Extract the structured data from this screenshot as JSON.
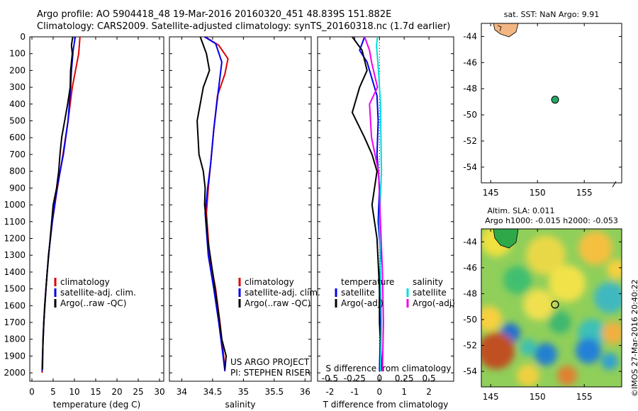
{
  "header": {
    "line1": "Argo profile: AO 5904418_48 19-Mar-2016 20160320_451 48.839S 151.882E",
    "line2": "Climatology: CARS2009. Satellite-adjusted climatology: synTS_20160318.nc (1.7d earlier)"
  },
  "stamp": "©IMOS 27-Mar-2016 20:40:22",
  "colors": {
    "clim": "#dd0000",
    "sat": "#0000ee",
    "argo": "#000000",
    "sat_s": "#00dddd",
    "argo_s": "#ee00ee"
  },
  "chart_data": [
    {
      "type": "line",
      "xlabel": "temperature (deg C)",
      "xlim": [
        -0.5,
        31
      ],
      "xticks": [
        0,
        5,
        10,
        15,
        20,
        25,
        30
      ],
      "ylim": [
        2050,
        0
      ],
      "yticks": [
        0,
        100,
        200,
        300,
        400,
        500,
        600,
        700,
        800,
        900,
        1000,
        1100,
        1200,
        1300,
        1400,
        1500,
        1600,
        1700,
        1800,
        1900,
        2000
      ],
      "legend": [
        "climatology",
        "satellite-adj. clim.",
        "Argo(..raw -QC)"
      ],
      "series": [
        {
          "name": "climatology",
          "color": "clim",
          "points": [
            [
              11.3,
              0
            ],
            [
              11,
              100
            ],
            [
              9.5,
              300
            ],
            [
              8.5,
              500
            ],
            [
              7.3,
              700
            ],
            [
              6,
              900
            ],
            [
              4.8,
              1100
            ],
            [
              3.9,
              1300
            ],
            [
              3.3,
              1500
            ],
            [
              2.8,
              1700
            ],
            [
              2.5,
              1900
            ],
            [
              2.4,
              2000
            ]
          ]
        },
        {
          "name": "satellite-adj. clim.",
          "color": "sat",
          "points": [
            [
              10.2,
              0
            ],
            [
              9.7,
              80
            ],
            [
              9.3,
              200
            ],
            [
              9.1,
              300
            ],
            [
              8.5,
              500
            ],
            [
              7.4,
              700
            ],
            [
              5.9,
              900
            ],
            [
              4.8,
              1100
            ],
            [
              3.9,
              1300
            ],
            [
              3.3,
              1500
            ],
            [
              2.8,
              1700
            ],
            [
              2.5,
              1900
            ],
            [
              2.4,
              1990
            ]
          ]
        },
        {
          "name": "Argo(..raw -QC)",
          "color": "argo",
          "points": [
            [
              9.6,
              0
            ],
            [
              9.3,
              50
            ],
            [
              9.5,
              100
            ],
            [
              9.1,
              200
            ],
            [
              9,
              300
            ],
            [
              8.4,
              400
            ],
            [
              7.7,
              500
            ],
            [
              7,
              600
            ],
            [
              6.6,
              700
            ],
            [
              6.3,
              800
            ],
            [
              5.8,
              900
            ],
            [
              5,
              1000
            ],
            [
              4.3,
              1200
            ],
            [
              3.6,
              1400
            ],
            [
              3,
              1600
            ],
            [
              2.6,
              1800
            ],
            [
              2.5,
              1980
            ]
          ]
        }
      ]
    },
    {
      "type": "line",
      "xlabel": "salinity",
      "xlim": [
        33.8,
        36.1
      ],
      "xticks": [
        34,
        34.5,
        35,
        35.5,
        36
      ],
      "ylim": [
        2050,
        0
      ],
      "legend": [
        "climatology",
        "satellite-adj. clim.",
        "Argo(..raw -QC)"
      ],
      "annotations": [
        "US ARGO PROJECT",
        "PI: STEPHEN RISER"
      ],
      "series": [
        {
          "name": "climatology",
          "color": "clim",
          "points": [
            [
              34.38,
              0
            ],
            [
              34.6,
              50
            ],
            [
              34.75,
              130
            ],
            [
              34.7,
              220
            ],
            [
              34.58,
              350
            ],
            [
              34.52,
              550
            ],
            [
              34.47,
              750
            ],
            [
              34.43,
              900
            ],
            [
              34.4,
              1050
            ],
            [
              34.45,
              1300
            ],
            [
              34.55,
              1500
            ],
            [
              34.62,
              1700
            ],
            [
              34.68,
              1900
            ],
            [
              34.7,
              1990
            ]
          ]
        },
        {
          "name": "satellite-adj. clim.",
          "color": "sat",
          "points": [
            [
              34.37,
              0
            ],
            [
              34.55,
              40
            ],
            [
              34.65,
              150
            ],
            [
              34.6,
              300
            ],
            [
              34.52,
              550
            ],
            [
              34.47,
              750
            ],
            [
              34.42,
              900
            ],
            [
              34.38,
              1050
            ],
            [
              34.43,
              1300
            ],
            [
              34.52,
              1500
            ],
            [
              34.6,
              1700
            ],
            [
              34.67,
              1900
            ],
            [
              34.7,
              1990
            ]
          ]
        },
        {
          "name": "Argo(..raw -QC)",
          "color": "argo",
          "points": [
            [
              34.3,
              0
            ],
            [
              34.4,
              100
            ],
            [
              34.45,
              200
            ],
            [
              34.35,
              300
            ],
            [
              34.25,
              500
            ],
            [
              34.28,
              700
            ],
            [
              34.35,
              800
            ],
            [
              34.38,
              900
            ],
            [
              34.37,
              1000
            ],
            [
              34.4,
              1100
            ],
            [
              34.42,
              1200
            ],
            [
              34.5,
              1400
            ],
            [
              34.58,
              1600
            ],
            [
              34.65,
              1800
            ],
            [
              34.72,
              1900
            ],
            [
              34.7,
              1980
            ]
          ]
        }
      ]
    },
    {
      "type": "line",
      "xlabel": "T difference from climatology",
      "x2label": "S difference from climatology",
      "xlim": [
        -2.5,
        3
      ],
      "xticks": [
        -2,
        -1,
        0,
        1,
        2
      ],
      "x2lim": [
        -0.625,
        0.75
      ],
      "x2ticks": [
        -0.5,
        -0.25,
        0,
        0.25,
        0.5
      ],
      "x2ticklabels": [
        "-0.5",
        "-0.25",
        "0",
        "0.25",
        "0.5"
      ],
      "ylim": [
        2050,
        0
      ],
      "legend_titles": [
        "temperature",
        "salinity"
      ],
      "legend_left": [
        "satellite",
        "Argo(-adj)"
      ],
      "legend_right": [
        "satellite",
        "Argo(-adj)"
      ],
      "series": [
        {
          "name": "satellite",
          "color": "sat",
          "axis": "T",
          "points": [
            [
              -0.6,
              0
            ],
            [
              -0.8,
              80
            ],
            [
              -0.5,
              150
            ],
            [
              -0.3,
              250
            ],
            [
              -0.1,
              350
            ],
            [
              -0.05,
              500
            ],
            [
              -0.1,
              700
            ],
            [
              0,
              900
            ],
            [
              -0.05,
              1100
            ],
            [
              0.05,
              1300
            ],
            [
              0,
              1500
            ],
            [
              0.05,
              1700
            ],
            [
              0,
              1990
            ]
          ]
        },
        {
          "name": "Argo(-adj)",
          "color": "argo",
          "axis": "T",
          "points": [
            [
              -1.1,
              0
            ],
            [
              -0.7,
              80
            ],
            [
              -0.5,
              200
            ],
            [
              -0.8,
              300
            ],
            [
              -1.1,
              450
            ],
            [
              -0.6,
              600
            ],
            [
              -0.3,
              700
            ],
            [
              -0.1,
              800
            ],
            [
              -0.2,
              900
            ],
            [
              -0.3,
              1000
            ],
            [
              -0.1,
              1200
            ],
            [
              0,
              1500
            ],
            [
              0,
              1700
            ],
            [
              0.1,
              1990
            ]
          ]
        },
        {
          "name": "satellite",
          "color": "sat_s",
          "axis": "S",
          "points": [
            [
              -0.02,
              0
            ],
            [
              -0.03,
              50
            ],
            [
              -0.01,
              200
            ],
            [
              0.01,
              400
            ],
            [
              0.02,
              800
            ],
            [
              0,
              1100
            ],
            [
              0.01,
              1400
            ],
            [
              0.02,
              1700
            ],
            [
              0.01,
              1990
            ]
          ]
        },
        {
          "name": "Argo(-adj)",
          "color": "argo_s",
          "axis": "S",
          "points": [
            [
              -0.15,
              0
            ],
            [
              -0.1,
              80
            ],
            [
              -0.08,
              150
            ],
            [
              -0.02,
              300
            ],
            [
              -0.1,
              400
            ],
            [
              -0.08,
              600
            ],
            [
              -0.01,
              800
            ],
            [
              0.01,
              1100
            ],
            [
              0.03,
              1400
            ],
            [
              0.04,
              1700
            ],
            [
              0.03,
              1990
            ]
          ]
        }
      ]
    },
    {
      "type": "scatter",
      "title": "sat. SST: NaN Argo: 9.91",
      "xlim": [
        144,
        159
      ],
      "ylim": [
        -55.2,
        -43
      ],
      "xticks": [
        145,
        150,
        155
      ],
      "yticks": [
        -44,
        -46,
        -48,
        -50,
        -52,
        -54
      ],
      "points": [
        {
          "x": 151.882,
          "y": -48.839
        }
      ]
    },
    {
      "type": "heatmap",
      "title_lines": [
        "Altim. SLA: 0.011",
        "Argo h1000: -0.015 h2000: -0.053"
      ],
      "xlim": [
        144,
        159
      ],
      "ylim": [
        -55.2,
        -43
      ],
      "xticks": [
        145,
        150,
        155
      ],
      "yticks": [
        -44,
        -46,
        -48,
        -50,
        -52,
        -54
      ],
      "points": [
        {
          "x": 151.882,
          "y": -48.839
        }
      ]
    }
  ]
}
